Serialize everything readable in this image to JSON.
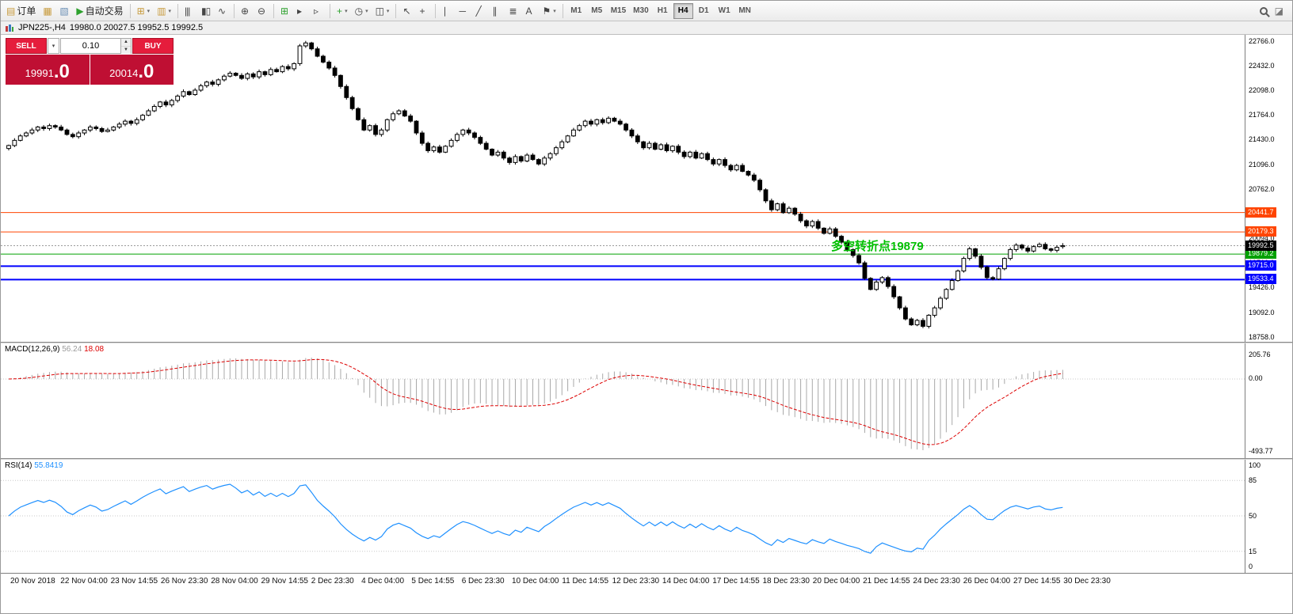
{
  "toolbar": {
    "dropdown_glyph": "▾",
    "groups": [
      {
        "items": [
          {
            "name": "new-order-button",
            "icon": "new-order-icon",
            "glyph": "▤",
            "glyph_color": "#c79a3b",
            "label": "订单"
          },
          {
            "name": "charts-button",
            "icon": "charts-icon",
            "glyph": "▦",
            "glyph_color": "#c79a3b"
          },
          {
            "name": "strategy-tester-button",
            "icon": "tester-icon",
            "glyph": "▧",
            "glyph_color": "#6b8fb5"
          },
          {
            "name": "autotrading-button",
            "icon": "autotrading-play-icon",
            "glyph": "▶",
            "glyph_color": "#2da12d",
            "label": "自动交易"
          }
        ]
      },
      {
        "items": [
          {
            "name": "new-chart-button",
            "icon": "new-chart-icon",
            "glyph": "⊞",
            "glyph_color": "#c79a3b",
            "dropdown": true
          },
          {
            "name": "profiles-button",
            "icon": "profiles-icon",
            "glyph": "▥",
            "glyph_color": "#c79a3b",
            "dropdown": true
          }
        ]
      },
      {
        "items": [
          {
            "name": "bar-chart-type-button",
            "icon": "bars-icon",
            "glyph": "|||"
          },
          {
            "name": "candlestick-type-button",
            "icon": "candles-icon",
            "glyph": "▮▯"
          },
          {
            "name": "line-type-button",
            "icon": "line-chart-icon",
            "glyph": "∿"
          }
        ]
      },
      {
        "items": [
          {
            "name": "zoom-in-button",
            "icon": "zoom-in-icon",
            "glyph": "⊕"
          },
          {
            "name": "zoom-out-button",
            "icon": "zoom-out-icon",
            "glyph": "⊖"
          }
        ]
      },
      {
        "items": [
          {
            "name": "tile-windows-button",
            "icon": "tile-windows-icon",
            "glyph": "⊞",
            "glyph_color": "#2da12d"
          },
          {
            "name": "auto-scroll-button",
            "icon": "auto-scroll-icon",
            "glyph": "▸"
          },
          {
            "name": "chart-shift-button",
            "icon": "chart-shift-icon",
            "glyph": "▹"
          }
        ]
      },
      {
        "items": [
          {
            "name": "indicators-button",
            "icon": "indicators-icon",
            "glyph": "+",
            "glyph_color": "#2da12d",
            "dropdown": true
          },
          {
            "name": "periods-button",
            "icon": "clock-icon",
            "glyph": "◷",
            "dropdown": true
          },
          {
            "name": "templates-button",
            "icon": "templates-icon",
            "glyph": "◫",
            "dropdown": true
          }
        ]
      },
      {
        "items": [
          {
            "name": "cursor-button",
            "icon": "cursor-icon",
            "glyph": "↖"
          },
          {
            "name": "crosshair-button",
            "icon": "crosshair-icon",
            "glyph": "+"
          }
        ]
      },
      {
        "items": [
          {
            "name": "vertical-line-button",
            "icon": "vertical-line-icon",
            "glyph": "∣"
          },
          {
            "name": "horizontal-line-button",
            "icon": "horizontal-line-icon",
            "glyph": "─"
          },
          {
            "name": "trendline-button",
            "icon": "trendline-icon",
            "glyph": "╱"
          },
          {
            "name": "channel-button",
            "icon": "channel-icon",
            "glyph": "∥"
          },
          {
            "name": "fibonacci-button",
            "icon": "fibonacci-icon",
            "glyph": "≣"
          },
          {
            "name": "text-label-button",
            "icon": "text-icon",
            "glyph": "A"
          },
          {
            "name": "arrows-button",
            "icon": "arrows-icon",
            "glyph": "⚑",
            "dropdown": true
          }
        ]
      }
    ],
    "timeframes": {
      "items": [
        "M1",
        "M5",
        "M15",
        "M30",
        "H1",
        "H4",
        "D1",
        "W1",
        "MN"
      ],
      "active": "H4"
    }
  },
  "chart": {
    "title": "JPN225-,H4",
    "ohlc": "19980.0 20027.5 19952.5 19992.5",
    "trade_panel": {
      "sell_label": "SELL",
      "buy_label": "BUY",
      "volume": "0.10",
      "sell_price_int": "19991",
      "sell_price_frac": ".0",
      "buy_price_int": "20014",
      "buy_price_frac": ".0"
    },
    "annotation": {
      "text": "多空转折点19879",
      "color": "#00C000"
    },
    "y_axis": {
      "min": 18690,
      "max": 22850,
      "ticks": [
        "22766.0",
        "22432.0",
        "22098.0",
        "21764.0",
        "21430.0",
        "21096.0",
        "20762.0",
        "20428.0",
        "20094.0",
        "19760.0",
        "19426.0",
        "19092.0",
        "18758.0"
      ]
    },
    "lines": [
      {
        "label": "20441.7",
        "value": 20441.7,
        "color": "#FF4500",
        "width": 1
      },
      {
        "label": "20179.3",
        "value": 20179.3,
        "color": "#FF4500",
        "width": 1
      },
      {
        "label": "19879.2",
        "value": 19879.2,
        "color": "#00A000",
        "width": 1
      },
      {
        "label": "19715.0",
        "value": 19715.0,
        "color": "#0000FF",
        "width": 2
      },
      {
        "label": "19533.4",
        "value": 19533.4,
        "color": "#0000FF",
        "width": 2
      }
    ],
    "bid": {
      "value": 19992.5,
      "label": "19992.5",
      "badge_color": "#000000"
    }
  },
  "macd": {
    "name": "MACD(12,26,9)",
    "value_main": "56.24",
    "value_signal": "18.08",
    "axis": [
      "205.76",
      "0.00",
      "-493.77"
    ],
    "histogram_color": "#a8a8a8",
    "signal_color": "#dd0000"
  },
  "rsi": {
    "name": "RSI(14)",
    "value": "55.8419",
    "axis": [
      "100",
      "85",
      "50",
      "15",
      "0"
    ],
    "levels": [
      85,
      50,
      15
    ],
    "line_color": "#1e90ff"
  },
  "icons": {
    "spin_up": "▲",
    "spin_down": "▼",
    "dropdown": "▾"
  },
  "colors": {
    "candle_up": "#ffffff",
    "candle_down": "#000000",
    "candle_outline": "#000000",
    "grid_dotted": "#c8c8c8",
    "bid_line": "#9a9a9a"
  },
  "time_axis": [
    "20 Nov 2018",
    "22 Nov 04:00",
    "23 Nov 14:55",
    "26 Nov 23:30",
    "28 Nov 04:00",
    "29 Nov 14:55",
    "2 Dec 23:30",
    "4 Dec 04:00",
    "5 Dec 14:55",
    "6 Dec 23:30",
    "10 Dec 04:00",
    "11 Dec 14:55",
    "12 Dec 23:30",
    "14 Dec 04:00",
    "17 Dec 14:55",
    "18 Dec 23:30",
    "20 Dec 04:00",
    "21 Dec 14:55",
    "24 Dec 23:30",
    "26 Dec 04:00",
    "27 Dec 14:55",
    "30 Dec 23:30"
  ],
  "chart_data": [
    {
      "type": "candlestick",
      "symbol": "JPN225-",
      "timeframe": "H4",
      "ylim": [
        18690,
        22850
      ],
      "last_ohlc": {
        "open": 19980.0,
        "high": 20027.5,
        "low": 19952.5,
        "close": 19992.5
      },
      "closes": [
        21350,
        21420,
        21480,
        21520,
        21560,
        21600,
        21580,
        21620,
        21600,
        21560,
        21500,
        21470,
        21520,
        21560,
        21600,
        21580,
        21540,
        21560,
        21600,
        21640,
        21680,
        21650,
        21700,
        21760,
        21820,
        21880,
        21940,
        21900,
        21960,
        22020,
        22080,
        22040,
        22100,
        22160,
        22210,
        22180,
        22240,
        22290,
        22330,
        22300,
        22260,
        22320,
        22280,
        22350,
        22310,
        22380,
        22350,
        22420,
        22390,
        22460,
        22700,
        22740,
        22660,
        22560,
        22480,
        22400,
        22300,
        22150,
        22000,
        21850,
        21700,
        21560,
        21620,
        21500,
        21560,
        21700,
        21780,
        21820,
        21750,
        21680,
        21520,
        21380,
        21280,
        21330,
        21260,
        21340,
        21420,
        21500,
        21560,
        21520,
        21460,
        21380,
        21300,
        21220,
        21260,
        21180,
        21120,
        21200,
        21140,
        21220,
        21160,
        21100,
        21180,
        21240,
        21320,
        21400,
        21480,
        21560,
        21620,
        21680,
        21640,
        21700,
        21660,
        21720,
        21680,
        21640,
        21560,
        21480,
        21400,
        21320,
        21380,
        21300,
        21360,
        21280,
        21340,
        21260,
        21200,
        21260,
        21180,
        21240,
        21160,
        21100,
        21160,
        21080,
        21020,
        21080,
        21000,
        20950,
        20880,
        20750,
        20600,
        20480,
        20560,
        20440,
        20500,
        20420,
        20330,
        20260,
        20320,
        20230,
        20160,
        20220,
        20120,
        20040,
        19940,
        19860,
        19760,
        19550,
        19400,
        19500,
        19560,
        19440,
        19300,
        19150,
        19000,
        18920,
        18980,
        18900,
        19050,
        19150,
        19280,
        19400,
        19520,
        19650,
        19820,
        19950,
        19850,
        19700,
        19560,
        19540,
        19680,
        19820,
        19940,
        20000,
        19960,
        19920,
        19980,
        20010,
        19950,
        19930,
        19970,
        19992.5
      ]
    },
    {
      "type": "line",
      "name": "MACD(12,26,9)",
      "params": [
        12,
        26,
        9
      ],
      "current_main": 56.24,
      "current_signal": 18.08,
      "axis_labels": [
        205.76,
        0.0,
        -493.77
      ]
    },
    {
      "type": "line",
      "name": "RSI(14)",
      "params": [
        14
      ],
      "current": 55.8419,
      "axis_labels": [
        100,
        85,
        50,
        15,
        0
      ]
    }
  ]
}
